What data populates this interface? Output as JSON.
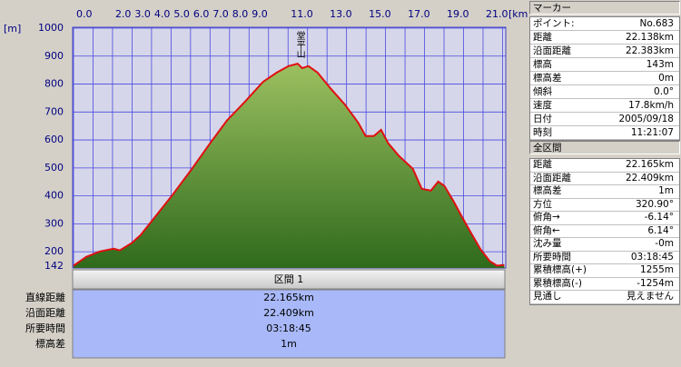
{
  "chart_data": {
    "type": "area",
    "x_label": "[km]",
    "y_label": "[m]",
    "color": "#e01010",
    "fill_top": "#9cc060",
    "fill_bottom": "#2f6a1c",
    "x": [
      0,
      0.65,
      1.35,
      2.05,
      2.37,
      2.98,
      3.44,
      4.14,
      5.07,
      6.0,
      6.93,
      7.86,
      8.79,
      9.72,
      10.42,
      11.02,
      11.49,
      11.72,
      12.05,
      12.51,
      13.21,
      13.91,
      14.6,
      14.98,
      15.4,
      15.77,
      16.14,
      16.7,
      17.4,
      17.86,
      18.33,
      18.7,
      19.02,
      19.49,
      19.95,
      20.42,
      20.88,
      21.35,
      21.72,
      22.09
    ],
    "values": [
      150,
      182,
      201,
      211,
      205,
      231,
      260,
      321,
      403,
      490,
      581,
      669,
      737,
      808,
      841,
      864,
      873,
      857,
      864,
      841,
      782,
      727,
      662,
      614,
      614,
      636,
      588,
      542,
      497,
      425,
      419,
      451,
      435,
      380,
      321,
      263,
      208,
      166,
      150,
      153
    ],
    "xlim": [
      0,
      22.165
    ],
    "ylim": [
      142,
      1000
    ],
    "xticks": [
      {
        "value": 0,
        "label": "0.0"
      },
      {
        "value": 1,
        "label": null
      },
      {
        "value": 2,
        "label": "2.0"
      },
      {
        "value": 3,
        "label": "3.0"
      },
      {
        "value": 4,
        "label": "4.0"
      },
      {
        "value": 5,
        "label": "5.0"
      },
      {
        "value": 6,
        "label": "6.0"
      },
      {
        "value": 7,
        "label": "7.0"
      },
      {
        "value": 8,
        "label": "8.0"
      },
      {
        "value": 9,
        "label": "9.0"
      },
      {
        "value": 10,
        "label": null
      },
      {
        "value": 11,
        "label": "11.0"
      },
      {
        "value": 12,
        "label": null
      },
      {
        "value": 13,
        "label": "13.0"
      },
      {
        "value": 14,
        "label": null
      },
      {
        "value": 15,
        "label": "15.0"
      },
      {
        "value": 16,
        "label": null
      },
      {
        "value": 17,
        "label": "17.0"
      },
      {
        "value": 18,
        "label": null
      },
      {
        "value": 19,
        "label": "19.0"
      },
      {
        "value": 20,
        "label": null
      },
      {
        "value": 21,
        "label": "21.0"
      },
      {
        "value": 22,
        "label": null
      }
    ],
    "yticks": [
      142,
      200,
      300,
      400,
      500,
      600,
      700,
      800,
      900,
      1000
    ],
    "grid": true,
    "annotations": [
      {
        "text": "堂平山",
        "x": 11.6
      }
    ]
  },
  "section": {
    "title": "区間 1",
    "rows": [
      [
        "直線距離",
        "22.165km"
      ],
      [
        "沿面距離",
        "22.409km"
      ],
      [
        "所要時間",
        "03:18:45"
      ],
      [
        "標高差",
        "1m"
      ]
    ]
  },
  "marker_panel": {
    "title": "マーカー",
    "rows": [
      [
        "ポイント:",
        "No.683"
      ],
      [
        "距離",
        "22.138km"
      ],
      [
        "沿面距離",
        "22.383km"
      ],
      [
        "標高",
        "143m"
      ],
      [
        "標高差",
        "0m"
      ],
      [
        "傾斜",
        "0.0°"
      ],
      [
        "速度",
        "17.8km/h"
      ],
      [
        "日付",
        "2005/09/18"
      ],
      [
        "時刻",
        "11:21:07"
      ]
    ]
  },
  "total_panel": {
    "title": "全区間",
    "rows": [
      [
        "距離",
        "22.165km"
      ],
      [
        "沿面距離",
        "22.409km"
      ],
      [
        "標高差",
        "1m"
      ],
      [
        "方位",
        "320.90°"
      ],
      [
        "俯角→",
        "-6.14°"
      ],
      [
        "俯角←",
        "6.14°"
      ],
      [
        "沈み量",
        "-0m"
      ],
      [
        "所要時間",
        "03:18:45"
      ],
      [
        "累積標高(+)",
        "1255m"
      ],
      [
        "累積標高(-)",
        "-1254m"
      ],
      [
        "見通し",
        "見えません"
      ]
    ]
  }
}
